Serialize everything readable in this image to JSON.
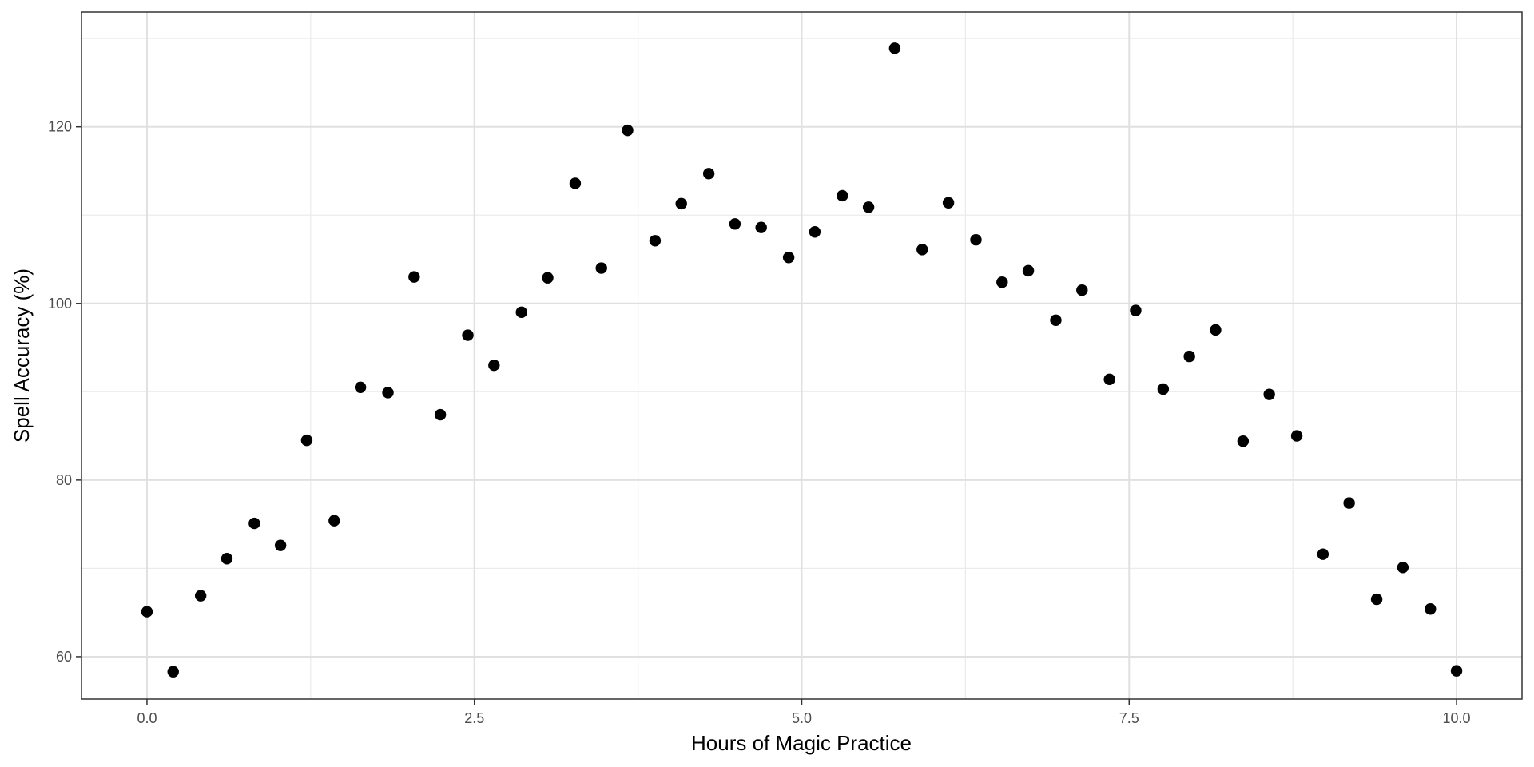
{
  "chart_data": {
    "type": "scatter",
    "title": "",
    "xlabel": "Hours of Magic Practice",
    "ylabel": "Spell Accuracy (%)",
    "xlim": [
      -0.5,
      10.5
    ],
    "ylim": [
      55.2,
      133.0
    ],
    "x_ticks": [
      0.0,
      2.5,
      5.0,
      7.5,
      10.0
    ],
    "x_tick_labels": [
      "0.0",
      "2.5",
      "5.0",
      "7.5",
      "10.0"
    ],
    "y_ticks": [
      60,
      80,
      100,
      120
    ],
    "y_tick_labels": [
      "60",
      "80",
      "100",
      "120"
    ],
    "grid": true,
    "point_color": "#000000",
    "series": [
      {
        "x": [
          0.0,
          0.2,
          0.41,
          0.61,
          0.82,
          1.02,
          1.22,
          1.43,
          1.63,
          1.84,
          2.04,
          2.24,
          2.45,
          2.65,
          2.86,
          3.06,
          3.27,
          3.47,
          3.67,
          3.88,
          4.08,
          4.29,
          4.49,
          4.69,
          4.9,
          5.1,
          5.31,
          5.51,
          5.71,
          5.92,
          6.12,
          6.33,
          6.53,
          6.73,
          6.94,
          7.14,
          7.35,
          7.55,
          7.76,
          7.96,
          8.16,
          8.37,
          8.57,
          8.78,
          8.98,
          9.18,
          9.39,
          9.59,
          9.8,
          10.0
        ],
        "y": [
          65.1,
          58.3,
          66.9,
          71.1,
          75.1,
          72.6,
          84.5,
          75.4,
          90.5,
          89.9,
          103.0,
          87.4,
          96.4,
          93.0,
          99.0,
          102.9,
          113.6,
          104.0,
          119.6,
          107.1,
          111.3,
          114.7,
          109.0,
          108.6,
          105.2,
          108.1,
          112.2,
          110.9,
          128.9,
          106.1,
          111.4,
          107.2,
          102.4,
          103.7,
          98.1,
          101.5,
          91.4,
          99.2,
          90.3,
          94.0,
          97.0,
          84.4,
          89.7,
          85.0,
          71.6,
          77.4,
          66.5,
          70.1,
          65.4,
          58.4
        ]
      }
    ]
  }
}
